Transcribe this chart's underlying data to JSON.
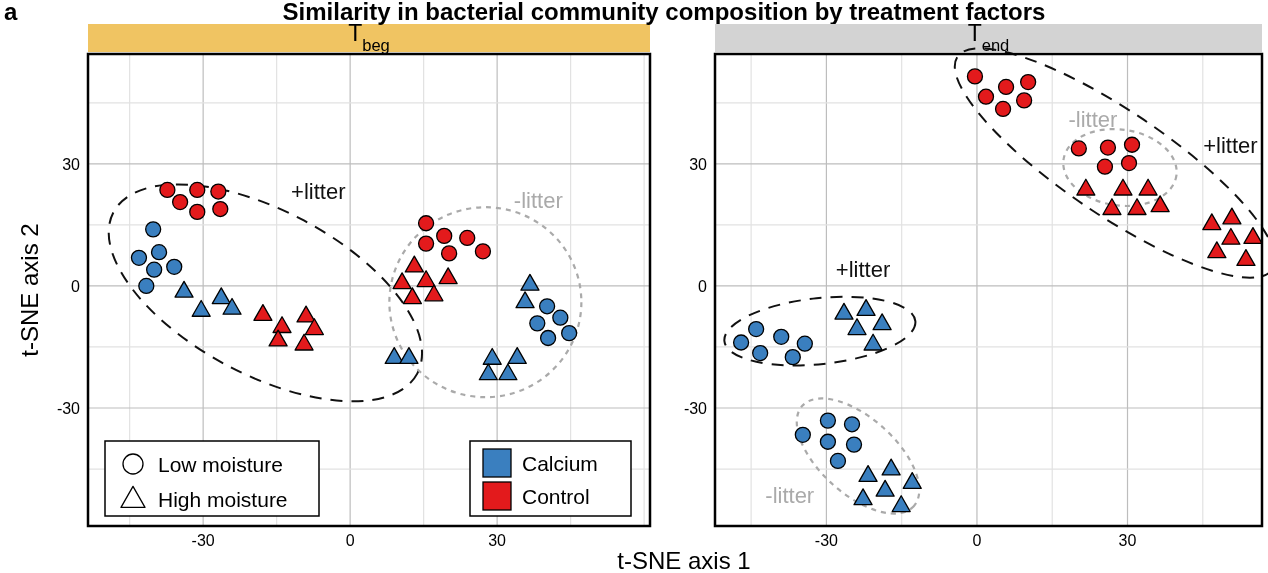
{
  "chart_data": [
    {
      "type": "scatter",
      "title": "T$_{beg}$",
      "xlabel": "t-SNE axis 1",
      "ylabel": "t-SNE axis 2",
      "xlim": [
        -53.5,
        61.2
      ],
      "ylim": [
        -59,
        57
      ],
      "xticks": [
        {
          "value": -45,
          "label": null
        },
        -30,
        {
          "value": -15,
          "label": null
        },
        0,
        {
          "value": 15,
          "label": null
        },
        30,
        {
          "value": 45,
          "label": null
        },
        {
          "value": 60,
          "label": null
        }
      ],
      "yticks": [
        {
          "value": -45,
          "label": null
        },
        -30,
        {
          "value": -15,
          "label": null
        },
        0,
        {
          "value": 15,
          "label": null
        },
        30,
        {
          "value": 45,
          "label": null
        }
      ],
      "grid": true,
      "annotations": [
        "a",
        "Similarity in bacterial community composition by treatment factors",
        "Low moisture",
        "High moisture",
        "Calcium",
        "Control",
        "+litter",
        "-litter"
      ],
      "series": [
        {
          "color": "#3a7fbf",
          "marker": "circle",
          "x": [
            -40.2,
            -39.0,
            -43.1,
            -40.0,
            -35.9,
            -41.6,
            40.2,
            42.9,
            38.2,
            40.4,
            44.7
          ],
          "values": [
            13.9,
            8.3,
            6.9,
            4.0,
            4.7,
            0.0,
            -5.0,
            -7.8,
            -9.2,
            -12.8,
            -11.6
          ]
        },
        {
          "color": "#3a7fbf",
          "marker": "triangle",
          "x": [
            -33.9,
            -30.4,
            -26.3,
            -24.1,
            9.0,
            12.0,
            29.0,
            34.1,
            28.2,
            32.2,
            36.7,
            35.7
          ],
          "values": [
            -1.2,
            -5.9,
            -2.8,
            -5.4,
            -17.5,
            -17.5,
            -17.7,
            -17.5,
            -21.5,
            -21.5,
            0.5,
            -3.8
          ]
        },
        {
          "color": "#e31a1c",
          "marker": "circle",
          "x": [
            -37.3,
            -34.7,
            -31.2,
            -31.2,
            -26.9,
            -26.5,
            15.5,
            15.5,
            19.2,
            20.2,
            23.9,
            27.1
          ],
          "values": [
            23.6,
            20.6,
            23.6,
            18.2,
            23.2,
            18.9,
            15.4,
            10.4,
            12.3,
            8.0,
            11.8,
            8.5
          ]
        },
        {
          "color": "#e31a1c",
          "marker": "triangle",
          "x": [
            -17.8,
            -13.9,
            -14.7,
            -9.0,
            -7.3,
            -9.4,
            13.1,
            10.6,
            15.5,
            20.0,
            12.7,
            17.1
          ],
          "values": [
            -6.9,
            -9.9,
            -13.2,
            -7.3,
            -10.4,
            -14.2,
            5.0,
            0.9,
            1.4,
            2.1,
            -2.8,
            -2.1
          ]
        }
      ]
    },
    {
      "type": "scatter",
      "title": "T$_{end}$",
      "xlim": [
        -52.2,
        56.8
      ],
      "ylim": [
        -59,
        57
      ],
      "xticks": [
        {
          "value": -45,
          "label": null
        },
        -30,
        {
          "value": -15,
          "label": null
        },
        0,
        {
          "value": 15,
          "label": null
        },
        30,
        {
          "value": 45,
          "label": null
        }
      ],
      "yticks": [
        {
          "value": -45,
          "label": null
        },
        -30,
        {
          "value": -15,
          "label": null
        },
        0,
        {
          "value": 15,
          "label": null
        },
        30,
        {
          "value": 45,
          "label": null
        }
      ],
      "grid": true,
      "annotations": [
        "+litter",
        "-litter",
        "+litter",
        "-litter"
      ],
      "series": [
        {
          "color": "#3a7fbf",
          "marker": "circle",
          "x": [
            -47.0,
            -44.0,
            -43.2,
            -39.0,
            -36.7,
            -34.3,
            -34.7,
            -29.7,
            -24.9,
            -29.7,
            -24.5,
            -27.7
          ],
          "values": [
            -13.9,
            -10.6,
            -16.5,
            -12.5,
            -17.5,
            -14.2,
            -36.6,
            -33.1,
            -34.0,
            -38.3,
            -39.0,
            -43.0
          ]
        },
        {
          "color": "#3a7fbf",
          "marker": "triangle",
          "x": [
            -26.5,
            -22.1,
            -23.9,
            -18.9,
            -20.7,
            -21.7,
            -17.1,
            -12.9,
            -18.3,
            -22.7,
            -15.1
          ],
          "values": [
            -6.6,
            -5.7,
            -10.4,
            -9.2,
            -14.2,
            -46.5,
            -44.9,
            -48.2,
            -50.1,
            -52.2,
            -53.9
          ]
        },
        {
          "color": "#e31a1c",
          "marker": "circle",
          "x": [
            -0.4,
            5.8,
            10.2,
            1.8,
            9.4,
            5.2,
            20.3,
            26.1,
            30.9,
            25.5,
            30.3
          ],
          "values": [
            51.5,
            48.9,
            50.1,
            46.5,
            45.6,
            43.5,
            33.8,
            34.0,
            34.7,
            29.3,
            30.2
          ]
        },
        {
          "color": "#e31a1c",
          "marker": "triangle",
          "x": [
            21.7,
            29.1,
            34.1,
            26.9,
            31.9,
            36.5,
            46.8,
            50.8,
            50.6,
            55.0,
            47.8,
            53.6
          ],
          "values": [
            23.9,
            23.9,
            23.9,
            19.1,
            19.1,
            19.8,
            15.4,
            16.8,
            11.8,
            12.0,
            8.5,
            6.6
          ]
        }
      ]
    }
  ]
}
